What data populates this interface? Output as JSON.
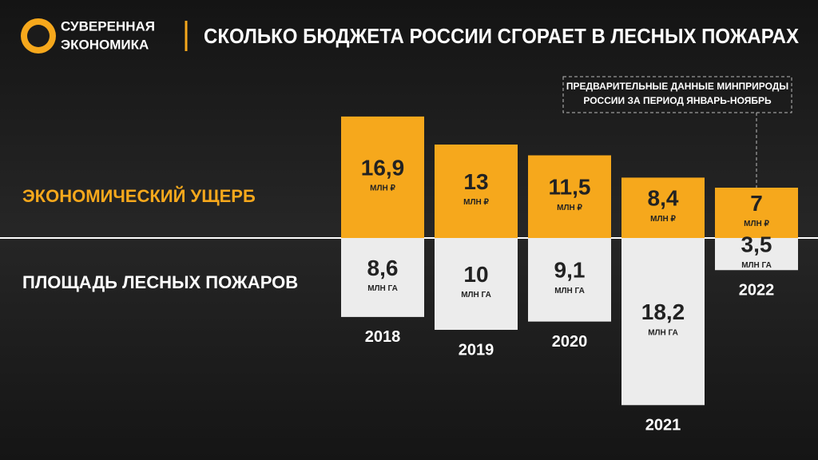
{
  "chart_data": {
    "type": "diverging-bar",
    "brand": [
      "СУВЕРЕННАЯ",
      "ЭКОНОМИКА"
    ],
    "title": "СКОЛЬКО БЮДЖЕТА РОССИИ СГОРАЕТ В ЛЕСНЫХ ПОЖАРАХ",
    "note": [
      "ПРЕДВАРИТЕЛЬНЫЕ ДАННЫЕ МИНПРИРОДЫ",
      "РОССИИ ЗА ПЕРИОД ЯНВАРЬ-НОЯБРЬ"
    ],
    "categories": [
      "2018",
      "2019",
      "2020",
      "2021",
      "2022"
    ],
    "series": [
      {
        "name": "ЭКОНОМИЧЕСКИЙ УЩЕРБ",
        "color": "#f6a81c",
        "unit": "МЛН ₽",
        "values": [
          16.9,
          13,
          11.5,
          8.4,
          7
        ],
        "value_labels": [
          "16,9",
          "13",
          "11,5",
          "8,4",
          "7"
        ]
      },
      {
        "name": "ПЛОЩАДЬ ЛЕСНЫХ ПОЖАРОВ",
        "color": "#ececec",
        "unit": "МЛН ГА",
        "values": [
          8.6,
          10,
          9.1,
          18.2,
          3.5
        ],
        "value_labels": [
          "8,6",
          "10",
          "9,1",
          "18,2",
          "3,5"
        ]
      }
    ]
  }
}
